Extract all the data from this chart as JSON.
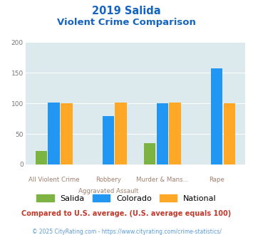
{
  "title_line1": "2019 Salida",
  "title_line2": "Violent Crime Comparison",
  "category_labels_top": [
    "",
    "Robbery",
    "Murder & Mans...",
    ""
  ],
  "category_labels_bottom": [
    "All Violent Crime",
    "Aggravated Assault",
    "",
    "Rape"
  ],
  "salida_values": [
    22,
    0,
    35,
    0
  ],
  "colorado_values": [
    101,
    79,
    100,
    157
  ],
  "national_values": [
    100,
    101,
    101,
    100
  ],
  "salida_color": "#7cb342",
  "colorado_color": "#2196f3",
  "national_color": "#ffa726",
  "ylim": [
    0,
    200
  ],
  "yticks": [
    0,
    50,
    100,
    150,
    200
  ],
  "background_color": "#dce9ed",
  "title_color": "#1565c0",
  "legend_salida": "Salida",
  "legend_colorado": "Colorado",
  "legend_national": "National",
  "footnote": "Compared to U.S. average. (U.S. average equals 100)",
  "copyright": "© 2025 CityRating.com - https://www.cityrating.com/crime-statistics/",
  "footnote_color": "#c0392b",
  "copyright_color": "#5b9bd5",
  "label_top_color": "#a08070",
  "label_bottom_color": "#a08070"
}
